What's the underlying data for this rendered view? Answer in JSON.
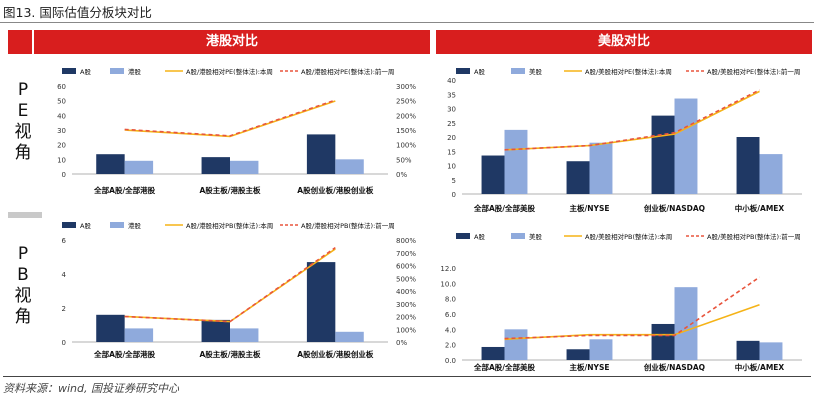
{
  "figure_title": "图13. 国际估值分板块对比",
  "source": "资料来源：wind, 国投证券研究中心",
  "headers": {
    "hk": "港股对比",
    "us": "美股对比"
  },
  "side_labels": {
    "pe": [
      "P",
      "E",
      "视",
      "角"
    ],
    "pb": [
      "P",
      "B",
      "视",
      "角"
    ]
  },
  "colors": {
    "a_share": "#1f3864",
    "other": "#8faadc",
    "this_week": "#f5b317",
    "last_week": "#e8553d",
    "header_red": "#d81e1e"
  },
  "chart_data": [
    {
      "id": "hk-pe",
      "type": "bar",
      "categories": [
        "全部A股/全部港股",
        "A股主板/港股主板",
        "A股创业板/港股创业板"
      ],
      "series": [
        {
          "name": "A股",
          "kind": "bar",
          "axis": "left",
          "values": [
            13.5,
            11.5,
            27
          ]
        },
        {
          "name": "港股",
          "kind": "bar",
          "axis": "left",
          "values": [
            9,
            9,
            10
          ]
        },
        {
          "name": "A股/港股相对PE(整体法):本周",
          "kind": "line",
          "axis": "right",
          "values": [
            150,
            128,
            249
          ]
        },
        {
          "name": "A股/港股相对PE(整体法):前一周",
          "kind": "dashed",
          "axis": "right",
          "values": [
            152,
            130,
            252
          ]
        }
      ],
      "left_axis": {
        "min": 0,
        "max": 60,
        "ticks": [
          "0",
          "10",
          "20",
          "30",
          "40",
          "50",
          "60"
        ]
      },
      "right_axis": {
        "min": 0,
        "max": 300,
        "ticks": [
          "0%",
          "50%",
          "100%",
          "150%",
          "200%",
          "250%",
          "300%"
        ]
      }
    },
    {
      "id": "us-pe",
      "type": "bar",
      "categories": [
        "全部A股/全部美股",
        "主板/NYSE",
        "创业板/NASDAQ",
        "中小板/AMEX"
      ],
      "series": [
        {
          "name": "A股",
          "kind": "bar",
          "axis": "left",
          "values": [
            13.5,
            11.5,
            27.5,
            20
          ]
        },
        {
          "name": "美股",
          "kind": "bar",
          "axis": "left",
          "values": [
            22.5,
            18,
            33.5,
            14
          ]
        },
        {
          "name": "A股/美股相对PE(整体法):本周",
          "kind": "line",
          "axis": "left",
          "values": [
            15.5,
            17,
            21,
            36
          ]
        },
        {
          "name": "A股/美股相对PE(整体法):前一周",
          "kind": "dashed",
          "axis": "left",
          "values": [
            15.5,
            17,
            21.5,
            36.5
          ]
        }
      ],
      "left_axis": {
        "min": 0,
        "max": 40,
        "ticks": [
          "0",
          "5",
          "10",
          "15",
          "20",
          "25",
          "30",
          "35",
          "40"
        ]
      }
    },
    {
      "id": "hk-pb",
      "type": "bar",
      "categories": [
        "全部A股/全部港股",
        "A股主板/港股主板",
        "A股创业板/港股创业板"
      ],
      "series": [
        {
          "name": "A股",
          "kind": "bar",
          "axis": "left",
          "values": [
            1.6,
            1.3,
            4.7
          ]
        },
        {
          "name": "港股",
          "kind": "bar",
          "axis": "left",
          "values": [
            0.8,
            0.8,
            0.6
          ]
        },
        {
          "name": "A股/港股相对PB(整体法):本周",
          "kind": "line",
          "axis": "right",
          "values": [
            200,
            160,
            730
          ]
        },
        {
          "name": "A股/港股相对PB(整体法):前一周",
          "kind": "dashed",
          "axis": "right",
          "values": [
            200,
            160,
            740
          ]
        }
      ],
      "left_axis": {
        "min": 0,
        "max": 6,
        "ticks": [
          "0",
          "2",
          "4",
          "6"
        ]
      },
      "right_axis": {
        "min": 0,
        "max": 800,
        "ticks": [
          "0%",
          "100%",
          "200%",
          "300%",
          "400%",
          "500%",
          "600%",
          "700%",
          "800%"
        ]
      }
    },
    {
      "id": "us-pb",
      "type": "bar",
      "categories": [
        "全部A股/全部美股",
        "主板/NYSE",
        "创业板/NASDAQ",
        "中小板/AMEX"
      ],
      "series": [
        {
          "name": "A股",
          "kind": "bar",
          "axis": "left",
          "values": [
            1.7,
            1.4,
            4.7,
            2.5
          ]
        },
        {
          "name": "美股",
          "kind": "bar",
          "axis": "left",
          "values": [
            4,
            2.7,
            9.5,
            2.3
          ]
        },
        {
          "name": "A股/美股相对PB(整体法):本周",
          "kind": "line",
          "axis": "left",
          "values": [
            2.7,
            3.3,
            3.3,
            7.2
          ]
        },
        {
          "name": "A股/美股相对PB(整体法):前一周",
          "kind": "dashed",
          "axis": "left",
          "values": [
            2.8,
            3.2,
            3.2,
            10.8
          ]
        }
      ],
      "left_axis": {
        "min": 0,
        "max": 12,
        "ticks": [
          "0.0",
          "2.0",
          "4.0",
          "6.0",
          "8.0",
          "10.0",
          "12.0"
        ]
      }
    }
  ]
}
